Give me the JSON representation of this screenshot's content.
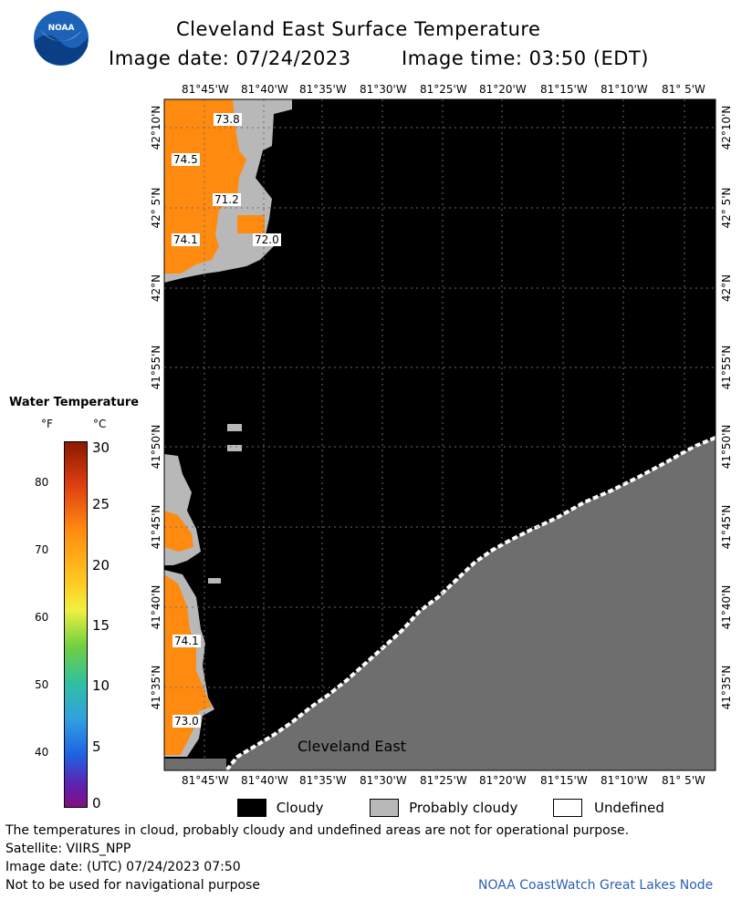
{
  "header": {
    "title": "Cleveland East Surface Temperature",
    "image_date": "Image date: 07/24/2023",
    "image_time": "Image time: 03:50 (EDT)",
    "logo_text": "NOAA"
  },
  "map": {
    "region_label": "Cleveland East",
    "lon_labels": [
      "81°45'W",
      "81°40'W",
      "81°35'W",
      "81°30'W",
      "81°25'W",
      "81°20'W",
      "81°15'W",
      "81°10'W",
      "81° 5'W"
    ],
    "lat_labels": [
      "42°10'N",
      "42° 5'N",
      "42°N",
      "41°55'N",
      "41°50'N",
      "41°45'N",
      "41°40'N",
      "41°35'N"
    ],
    "temperature_labels": [
      "73.8",
      "74.5",
      "71.2",
      "74.1",
      "72.0",
      "74.1",
      "73.0"
    ],
    "colors": {
      "cloud": "#000000",
      "probably_cloudy": "#b8b8b8",
      "land": "#6e6e6e",
      "water_warm": "#ff8a10",
      "grid": "#6e6e6e"
    }
  },
  "colorbar": {
    "title": "Water Temperature",
    "unit_f": "°F",
    "unit_c": "°C",
    "f_ticks": [
      "80",
      "70",
      "60",
      "50",
      "40"
    ],
    "c_ticks": [
      "30",
      "25",
      "20",
      "15",
      "10",
      "5",
      "0"
    ]
  },
  "legend": {
    "cloudy": "Cloudy",
    "probably_cloudy": "Probably cloudy",
    "undefined": "Undefined"
  },
  "footer": {
    "disclaimer": "The temperatures in cloud, probably cloudy and undefined areas are not for operational purpose.",
    "satellite": "Satellite: VIIRS_NPP",
    "utc_date": "Image date: (UTC) 07/24/2023  07:50",
    "nav_warning": "Not to be used for navigational purpose",
    "credit": "NOAA CoastWatch Great Lakes Node"
  }
}
